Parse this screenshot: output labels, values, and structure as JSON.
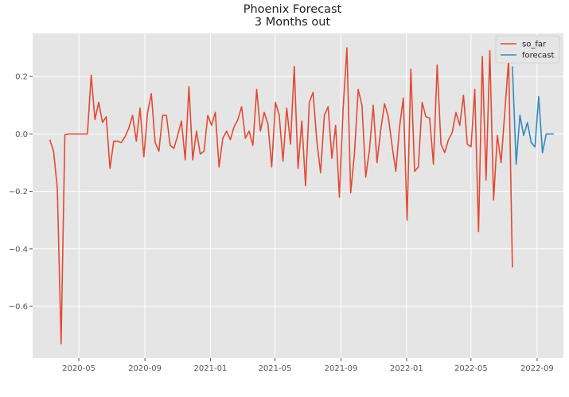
{
  "chart_data": {
    "type": "line",
    "title": "Phoenix Forecast",
    "subtitle": "3 Months out",
    "xlabel": "",
    "ylabel": "",
    "x_range": [
      "2020-02-05",
      "2022-10-20"
    ],
    "ylim": [
      -0.78,
      0.35
    ],
    "x_ticks": [
      {
        "date": "2020-05-01",
        "label": "2020-05"
      },
      {
        "date": "2020-09-01",
        "label": "2020-09"
      },
      {
        "date": "2021-01-01",
        "label": "2021-01"
      },
      {
        "date": "2021-05-01",
        "label": "2021-05"
      },
      {
        "date": "2021-09-01",
        "label": "2021-09"
      },
      {
        "date": "2022-01-01",
        "label": "2022-01"
      },
      {
        "date": "2022-05-01",
        "label": "2022-05"
      },
      {
        "date": "2022-09-01",
        "label": "2022-09"
      }
    ],
    "y_ticks": [
      {
        "value": 0.2,
        "label": "0.2"
      },
      {
        "value": 0.0,
        "label": "0.0"
      },
      {
        "value": -0.2,
        "label": "−0.2"
      },
      {
        "value": -0.4,
        "label": "−0.4"
      },
      {
        "value": -0.6,
        "label": "−0.6"
      }
    ],
    "grid": true,
    "style": "ggplot",
    "legend_position": "top-right",
    "series": [
      {
        "name": "so_far",
        "color": "#E24A33",
        "start": "2020-03-08",
        "step_days": 7,
        "values": [
          -0.02,
          -0.06,
          -0.19,
          -0.73,
          -0.003,
          0,
          0,
          0,
          0,
          0,
          0,
          0.205,
          0.05,
          0.11,
          0.04,
          0.06,
          -0.12,
          -0.025,
          -0.025,
          -0.03,
          -0.01,
          0.02,
          0.065,
          -0.025,
          0.09,
          -0.08,
          0.075,
          0.14,
          -0.03,
          -0.06,
          0.065,
          0.065,
          -0.04,
          -0.05,
          -0.005,
          0.045,
          -0.09,
          0.165,
          -0.09,
          0.01,
          -0.07,
          -0.06,
          0.065,
          0.03,
          0.075,
          -0.115,
          -0.015,
          0.01,
          -0.02,
          0.025,
          0.05,
          0.095,
          -0.015,
          0.01,
          -0.04,
          0.155,
          0.01,
          0.075,
          0.035,
          -0.115,
          0.11,
          0.065,
          -0.095,
          0.09,
          -0.035,
          0.235,
          -0.12,
          0.045,
          -0.18,
          0.11,
          0.145,
          -0.025,
          -0.135,
          0.065,
          0.095,
          -0.085,
          0.03,
          -0.22,
          0.09,
          0.3,
          -0.205,
          -0.07,
          0.155,
          0.1,
          -0.15,
          -0.055,
          0.1,
          -0.1,
          0.015,
          0.105,
          0.06,
          -0.04,
          -0.13,
          0.025,
          0.125,
          -0.3,
          0.225,
          -0.13,
          -0.115,
          0.11,
          0.06,
          0.055,
          -0.105,
          0.24,
          -0.035,
          -0.065,
          -0.02,
          0.005,
          0.075,
          0.03,
          0.135,
          -0.035,
          -0.045,
          0.155,
          -0.34,
          0.27,
          -0.16,
          0.29,
          -0.23,
          -0.005,
          -0.1,
          0.08,
          0.26,
          -0.465
        ]
      },
      {
        "name": "forecast",
        "color": "#348ABD",
        "start": "2022-07-17",
        "step_days": 7,
        "values": [
          0.235,
          -0.105,
          0.065,
          -0.005,
          0.04,
          -0.03,
          -0.045,
          0.13,
          -0.065,
          0,
          0,
          0
        ]
      }
    ]
  }
}
